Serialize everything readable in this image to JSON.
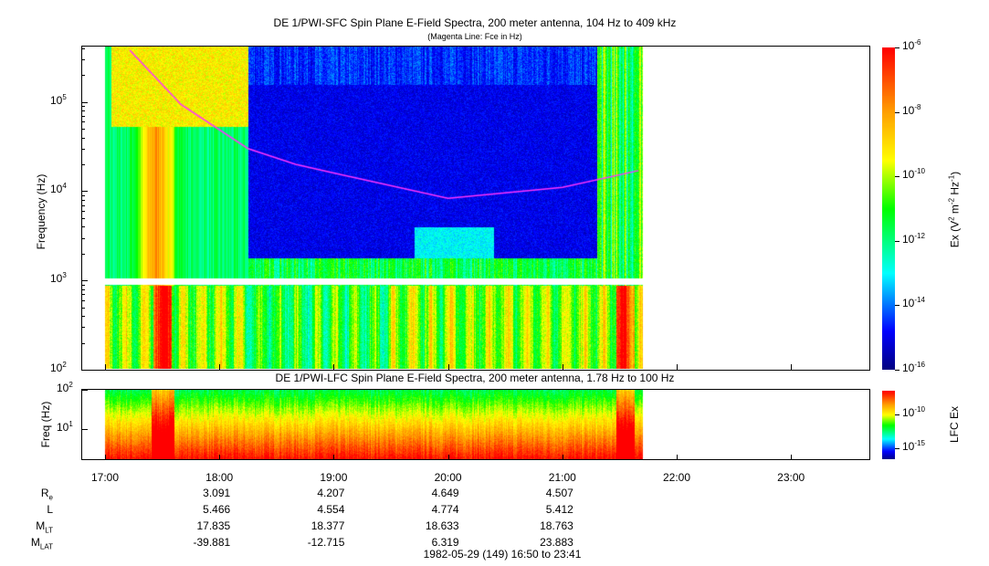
{
  "chart_data": [
    {
      "type": "heatmap",
      "title": "DE 1/PWI-SFC  Spin Plane E-Field Spectra, 200 meter antenna, 104 Hz to 409 kHz",
      "subtitle": "(Magenta Line: Fce in Hz)",
      "ylabel": "Frequency (Hz)",
      "yscale": "log",
      "ylim_hz": [
        100,
        409000
      ],
      "yticks": [
        {
          "v": 2,
          "label": "10",
          "exp": "2"
        },
        {
          "v": 3,
          "label": "10",
          "exp": "3"
        },
        {
          "v": 4,
          "label": "10",
          "exp": "4"
        },
        {
          "v": 5,
          "label": "10",
          "exp": "5"
        }
      ],
      "xlim": [
        "16:50",
        "23:41"
      ],
      "data_time_range": [
        "17:00",
        "21:42"
      ],
      "colorbar": {
        "label": "Ex (V",
        "label_tail": " m",
        "label_tail2": " Hz",
        "sup1": "2",
        "sup2": "-2",
        "sup3": "-1",
        "scale": "log",
        "range": [
          -16,
          -6
        ],
        "ticks": [
          {
            "v": -6,
            "label": "10",
            "exp": "-6"
          },
          {
            "v": -8,
            "label": "10",
            "exp": "-8"
          },
          {
            "v": -10,
            "label": "10",
            "exp": "-10"
          },
          {
            "v": -12,
            "label": "10",
            "exp": "-12"
          },
          {
            "v": -14,
            "label": "10",
            "exp": "-14"
          },
          {
            "v": -16,
            "label": "10",
            "exp": "-16"
          }
        ]
      },
      "fce_line": {
        "color": "#ff33ff",
        "points": [
          [
            "17:13",
            380000
          ],
          [
            "17:40",
            93000
          ],
          [
            "18:15",
            30000
          ],
          [
            "18:40",
            20000
          ],
          [
            "19:00",
            16000
          ],
          [
            "20:00",
            8300
          ],
          [
            "21:00",
            11000
          ],
          [
            "21:40",
            17000
          ]
        ]
      }
    },
    {
      "type": "heatmap",
      "title": "DE 1/PWI-LFC  Spin Plane E-Field Spectra, 200 meter antenna, 1.78 Hz to 100 Hz",
      "ylabel": "Freq (Hz)",
      "yscale": "log",
      "ylim_hz": [
        1.78,
        100
      ],
      "yticks": [
        {
          "v": 1,
          "label": "10",
          "exp": "1"
        },
        {
          "v": 2,
          "label": "10",
          "exp": "2"
        }
      ],
      "colorbar": {
        "label": "LFC Ex",
        "ticks": [
          {
            "v": -10,
            "label": "10",
            "exp": "-10"
          },
          {
            "v": -15,
            "label": "10",
            "exp": "-15"
          }
        ]
      }
    }
  ],
  "xaxis": {
    "ticks": [
      "17:00",
      "18:00",
      "19:00",
      "20:00",
      "21:00",
      "22:00",
      "23:00"
    ]
  },
  "ephemeris": {
    "rows": [
      {
        "label": "R",
        "sub": "e",
        "values": [
          "3.091",
          "4.207",
          "4.649",
          "4.507"
        ]
      },
      {
        "label": "L",
        "sub": "",
        "values": [
          "5.466",
          "4.554",
          "4.774",
          "5.412"
        ]
      },
      {
        "label": "M",
        "sub": "LT",
        "values": [
          "17.835",
          "18.377",
          "18.633",
          "18.763"
        ]
      },
      {
        "label": "M",
        "sub": "LAT",
        "values": [
          "-39.881",
          "-12.715",
          "6.319",
          "23.883"
        ]
      }
    ]
  },
  "footer": "1982-05-29 (149) 16:50 to 23:41"
}
